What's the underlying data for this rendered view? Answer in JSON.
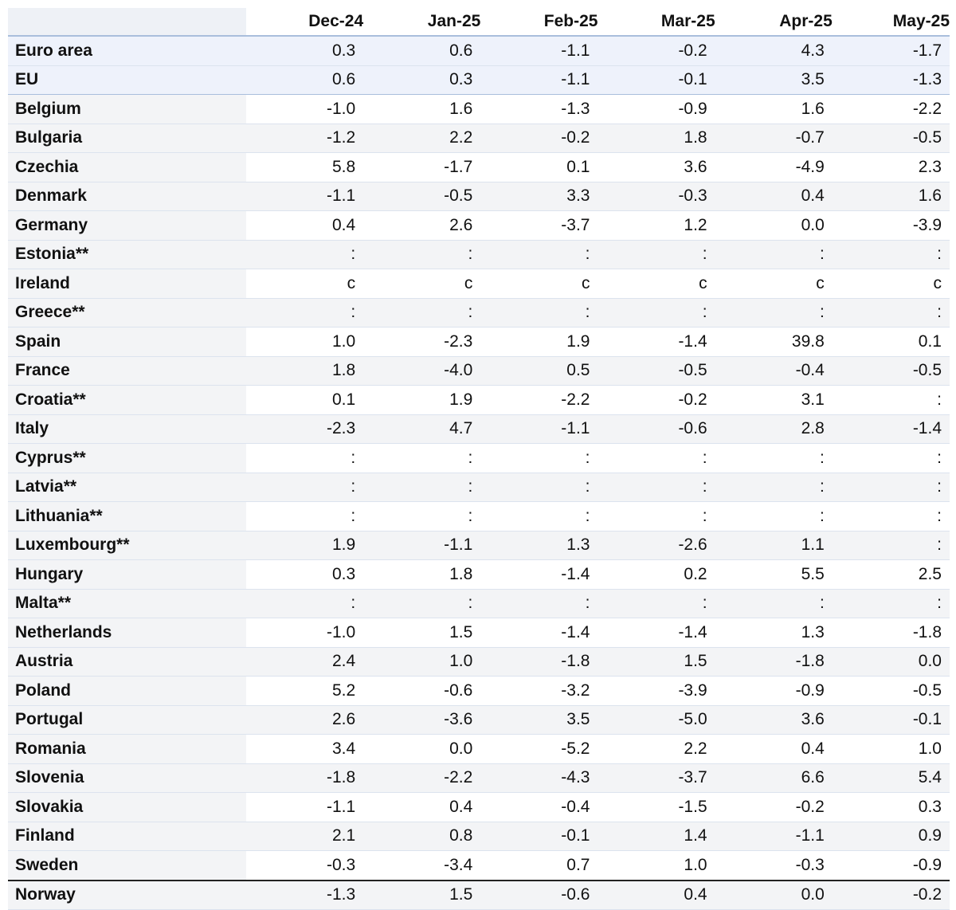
{
  "columns": [
    "Dec-24",
    "Jan-25",
    "Feb-25",
    "Mar-25",
    "Apr-25",
    "May-25"
  ],
  "rows": [
    {
      "name": "Euro area",
      "values": [
        "0.3",
        "0.6",
        "-1.1",
        "-0.2",
        "4.3",
        "-1.7"
      ]
    },
    {
      "name": "EU",
      "values": [
        "0.6",
        "0.3",
        "-1.1",
        "-0.1",
        "3.5",
        "-1.3"
      ]
    },
    {
      "name": "Belgium",
      "values": [
        "-1.0",
        "1.6",
        "-1.3",
        "-0.9",
        "1.6",
        "-2.2"
      ]
    },
    {
      "name": "Bulgaria",
      "values": [
        "-1.2",
        "2.2",
        "-0.2",
        "1.8",
        "-0.7",
        "-0.5"
      ]
    },
    {
      "name": "Czechia",
      "values": [
        "5.8",
        "-1.7",
        "0.1",
        "3.6",
        "-4.9",
        "2.3"
      ]
    },
    {
      "name": "Denmark",
      "values": [
        "-1.1",
        "-0.5",
        "3.3",
        "-0.3",
        "0.4",
        "1.6"
      ]
    },
    {
      "name": "Germany",
      "values": [
        "0.4",
        "2.6",
        "-3.7",
        "1.2",
        "0.0",
        "-3.9"
      ]
    },
    {
      "name": "Estonia**",
      "values": [
        ":",
        ":",
        ":",
        ":",
        ":",
        ":"
      ]
    },
    {
      "name": "Ireland",
      "values": [
        "c",
        "c",
        "c",
        "c",
        "c",
        "c"
      ]
    },
    {
      "name": "Greece**",
      "values": [
        ":",
        ":",
        ":",
        ":",
        ":",
        ":"
      ]
    },
    {
      "name": "Spain",
      "values": [
        "1.0",
        "-2.3",
        "1.9",
        "-1.4",
        "39.8",
        "0.1"
      ]
    },
    {
      "name": "France",
      "values": [
        "1.8",
        "-4.0",
        "0.5",
        "-0.5",
        "-0.4",
        "-0.5"
      ]
    },
    {
      "name": "Croatia**",
      "values": [
        "0.1",
        "1.9",
        "-2.2",
        "-0.2",
        "3.1",
        ":"
      ]
    },
    {
      "name": "Italy",
      "values": [
        "-2.3",
        "4.7",
        "-1.1",
        "-0.6",
        "2.8",
        "-1.4"
      ]
    },
    {
      "name": "Cyprus**",
      "values": [
        ":",
        ":",
        ":",
        ":",
        ":",
        ":"
      ]
    },
    {
      "name": "Latvia**",
      "values": [
        ":",
        ":",
        ":",
        ":",
        ":",
        ":"
      ]
    },
    {
      "name": "Lithuania**",
      "values": [
        ":",
        ":",
        ":",
        ":",
        ":",
        ":"
      ]
    },
    {
      "name": "Luxembourg**",
      "values": [
        "1.9",
        "-1.1",
        "1.3",
        "-2.6",
        "1.1",
        ":"
      ]
    },
    {
      "name": "Hungary",
      "values": [
        "0.3",
        "1.8",
        "-1.4",
        "0.2",
        "5.5",
        "2.5"
      ]
    },
    {
      "name": "Malta**",
      "values": [
        ":",
        ":",
        ":",
        ":",
        ":",
        ":"
      ]
    },
    {
      "name": "Netherlands",
      "values": [
        "-1.0",
        "1.5",
        "-1.4",
        "-1.4",
        "1.3",
        "-1.8"
      ]
    },
    {
      "name": "Austria",
      "values": [
        "2.4",
        "1.0",
        "-1.8",
        "1.5",
        "-1.8",
        "0.0"
      ]
    },
    {
      "name": "Poland",
      "values": [
        "5.2",
        "-0.6",
        "-3.2",
        "-3.9",
        "-0.9",
        "-0.5"
      ]
    },
    {
      "name": "Portugal",
      "values": [
        "2.6",
        "-3.6",
        "3.5",
        "-5.0",
        "3.6",
        "-0.1"
      ]
    },
    {
      "name": "Romania",
      "values": [
        "3.4",
        "0.0",
        "-5.2",
        "2.2",
        "0.4",
        "1.0"
      ]
    },
    {
      "name": "Slovenia",
      "values": [
        "-1.8",
        "-2.2",
        "-4.3",
        "-3.7",
        "6.6",
        "5.4"
      ]
    },
    {
      "name": "Slovakia",
      "values": [
        "-1.1",
        "0.4",
        "-0.4",
        "-1.5",
        "-0.2",
        "0.3"
      ]
    },
    {
      "name": "Finland",
      "values": [
        "2.1",
        "0.8",
        "-0.1",
        "1.4",
        "-1.1",
        "0.9"
      ]
    },
    {
      "name": "Sweden",
      "values": [
        "-0.3",
        "-3.4",
        "0.7",
        "1.0",
        "-0.3",
        "-0.9"
      ]
    },
    {
      "name": "Norway",
      "values": [
        "-1.3",
        "1.5",
        "-0.6",
        "0.4",
        "0.0",
        "-0.2"
      ]
    }
  ]
}
